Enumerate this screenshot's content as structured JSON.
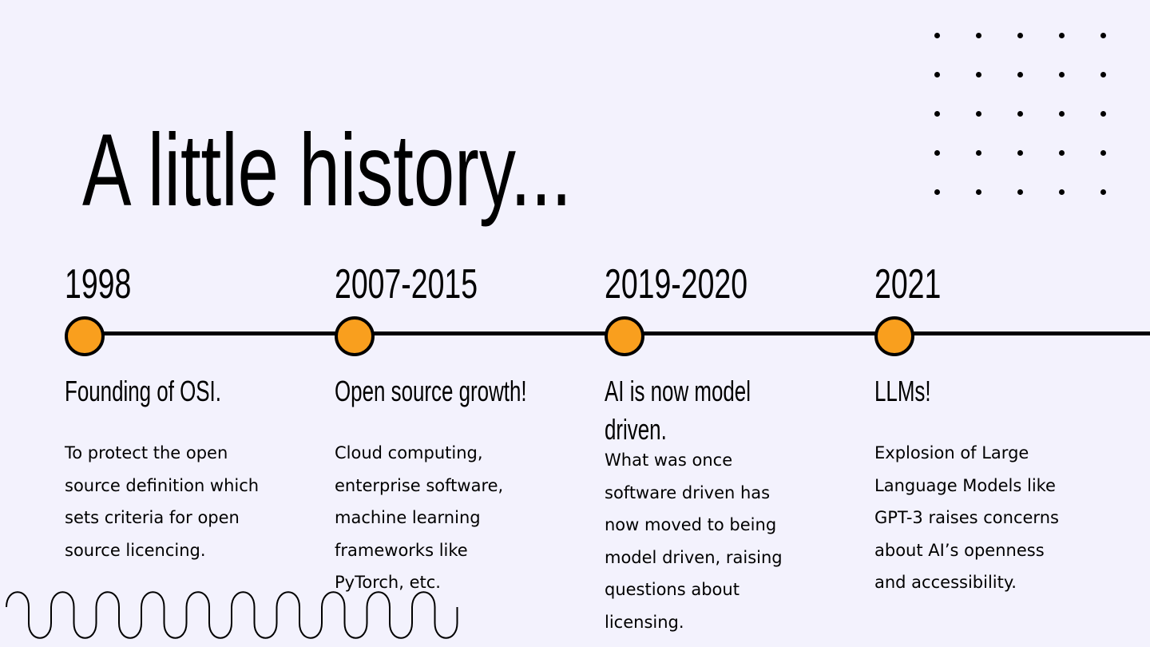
{
  "title": "A little history...",
  "timeline": [
    {
      "year": "1998",
      "heading": "Founding of OSI.",
      "heading_lines": [
        "Founding of OSI."
      ],
      "body": [
        "To protect the open",
        "source definition which",
        "sets criteria for open",
        "source licencing."
      ]
    },
    {
      "year": "2007-2015",
      "heading": "Open source growth!",
      "heading_lines": [
        "Open source growth!"
      ],
      "body": [
        "Cloud computing,",
        "enterprise software,",
        "machine learning",
        "frameworks like",
        "PyTorch, etc."
      ]
    },
    {
      "year": "2019-2020",
      "heading": "AI is now model driven.",
      "heading_lines": [
        "AI is now model",
        "driven."
      ],
      "body": [
        "What was once",
        "software driven has",
        "now moved to being",
        "model driven, raising",
        "questions about",
        "licensing."
      ]
    },
    {
      "year": "2021",
      "heading": "LLMs!",
      "heading_lines": [
        "LLMs!"
      ],
      "body": [
        "Explosion of Large",
        "Language Models like",
        "GPT-3 raises concerns",
        "about AI’s openness",
        "and accessibility."
      ]
    }
  ],
  "colors": {
    "background": "#f3f2fd",
    "accent": "#f99f1e"
  }
}
